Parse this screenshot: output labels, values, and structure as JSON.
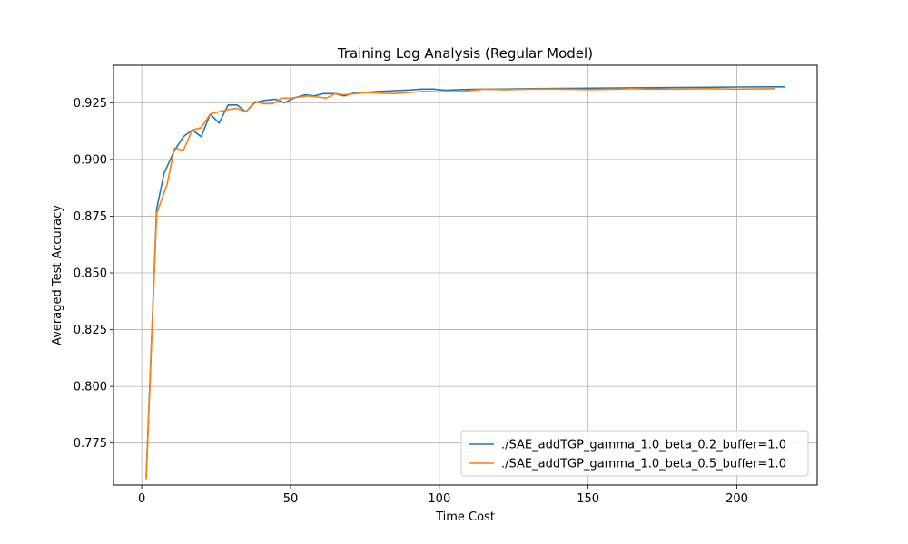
{
  "chart_data": {
    "type": "line",
    "title": "Training Log Analysis (Regular Model)",
    "xlabel": "Time Cost",
    "ylabel": "Averaged Test Accuracy",
    "xlim": [
      -9.5,
      227
    ],
    "ylim": [
      0.7565,
      0.9415
    ],
    "xticks": [
      0,
      50,
      100,
      150,
      200
    ],
    "yticks": [
      0.775,
      0.8,
      0.825,
      0.85,
      0.875,
      0.9,
      0.925
    ],
    "ytick_labels": [
      "0.775",
      "0.800",
      "0.825",
      "0.850",
      "0.875",
      "0.900",
      "0.925"
    ],
    "grid": true,
    "legend_position": "lower-right",
    "series": [
      {
        "name": "./SAE_addTGP_gamma_1.0_beta_0.2_buffer=1.0",
        "color": "#1f77b4",
        "x": [
          1.5,
          5,
          7.5,
          11,
          14,
          17,
          20,
          23,
          26,
          29,
          32,
          35,
          38,
          41,
          45,
          48,
          51,
          55,
          58,
          61,
          65,
          68,
          72,
          75,
          80,
          85,
          90,
          94,
          98,
          102,
          108,
          115,
          122,
          130,
          140,
          150,
          160,
          170,
          180,
          190,
          200,
          210,
          216
        ],
        "y": [
          0.76,
          0.878,
          0.894,
          0.904,
          0.91,
          0.913,
          0.91,
          0.92,
          0.916,
          0.924,
          0.924,
          0.921,
          0.925,
          0.926,
          0.9265,
          0.925,
          0.927,
          0.9285,
          0.928,
          0.929,
          0.929,
          0.928,
          0.9295,
          0.9295,
          0.93,
          0.9303,
          0.9306,
          0.931,
          0.931,
          0.9305,
          0.9308,
          0.931,
          0.931,
          0.9312,
          0.9313,
          0.9314,
          0.9315,
          0.9316,
          0.9317,
          0.9318,
          0.9319,
          0.932,
          0.932
        ]
      },
      {
        "name": "./SAE_addTGP_gamma_1.0_beta_0.5_buffer=1.0",
        "color": "#ff7f0e",
        "x": [
          1.5,
          5,
          8.5,
          11,
          14,
          17,
          20,
          23,
          26,
          29,
          32,
          35,
          38,
          41,
          44,
          47,
          50,
          53,
          56,
          59,
          62,
          65,
          68,
          72,
          75,
          80,
          85,
          90,
          95,
          100,
          108,
          115,
          122,
          130,
          140,
          150,
          160,
          165,
          170,
          180,
          190,
          200,
          213
        ],
        "y": [
          0.759,
          0.876,
          0.889,
          0.905,
          0.904,
          0.913,
          0.914,
          0.92,
          0.921,
          0.922,
          0.9225,
          0.921,
          0.9255,
          0.9245,
          0.9245,
          0.927,
          0.927,
          0.9275,
          0.928,
          0.9275,
          0.927,
          0.929,
          0.9285,
          0.929,
          0.9295,
          0.9292,
          0.929,
          0.9295,
          0.93,
          0.9298,
          0.93,
          0.931,
          0.9307,
          0.931,
          0.931,
          0.9308,
          0.931,
          0.9312,
          0.931,
          0.931,
          0.9312,
          0.931,
          0.9312
        ]
      }
    ]
  }
}
